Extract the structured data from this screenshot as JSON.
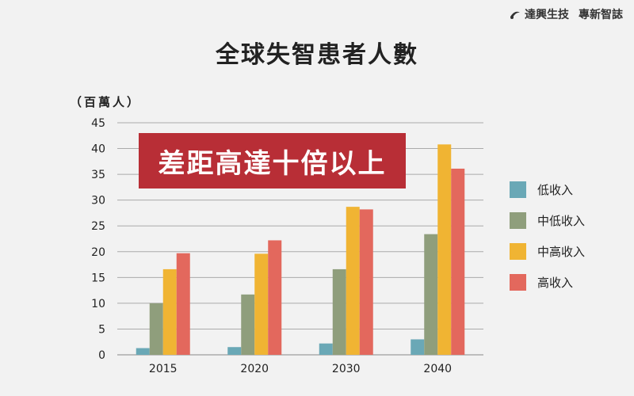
{
  "brand": {
    "name": "達興生技",
    "suffix": "專新智誌"
  },
  "chart_data": {
    "type": "bar",
    "title": "全球失智患者人數",
    "unit": "（百萬人）",
    "annotation": "差距高達十倍以上",
    "categories": [
      "2015",
      "2020",
      "2030",
      "2040"
    ],
    "ylim": [
      0,
      45
    ],
    "yticks": [
      0,
      5,
      10,
      15,
      20,
      25,
      30,
      35,
      40,
      45
    ],
    "grid": true,
    "legend_position": "right",
    "series": [
      {
        "name": "低收入",
        "color": "#6aa8b6",
        "values": [
          1.3,
          1.5,
          2.2,
          3.0
        ]
      },
      {
        "name": "中低收入",
        "color": "#8f9e7c",
        "values": [
          10.0,
          11.7,
          16.6,
          23.4
        ]
      },
      {
        "name": "中高收入",
        "color": "#f0b433",
        "values": [
          16.6,
          19.6,
          28.7,
          40.8
        ]
      },
      {
        "name": "高收入",
        "color": "#e3685d",
        "values": [
          19.7,
          22.2,
          28.2,
          36.1
        ]
      }
    ]
  }
}
